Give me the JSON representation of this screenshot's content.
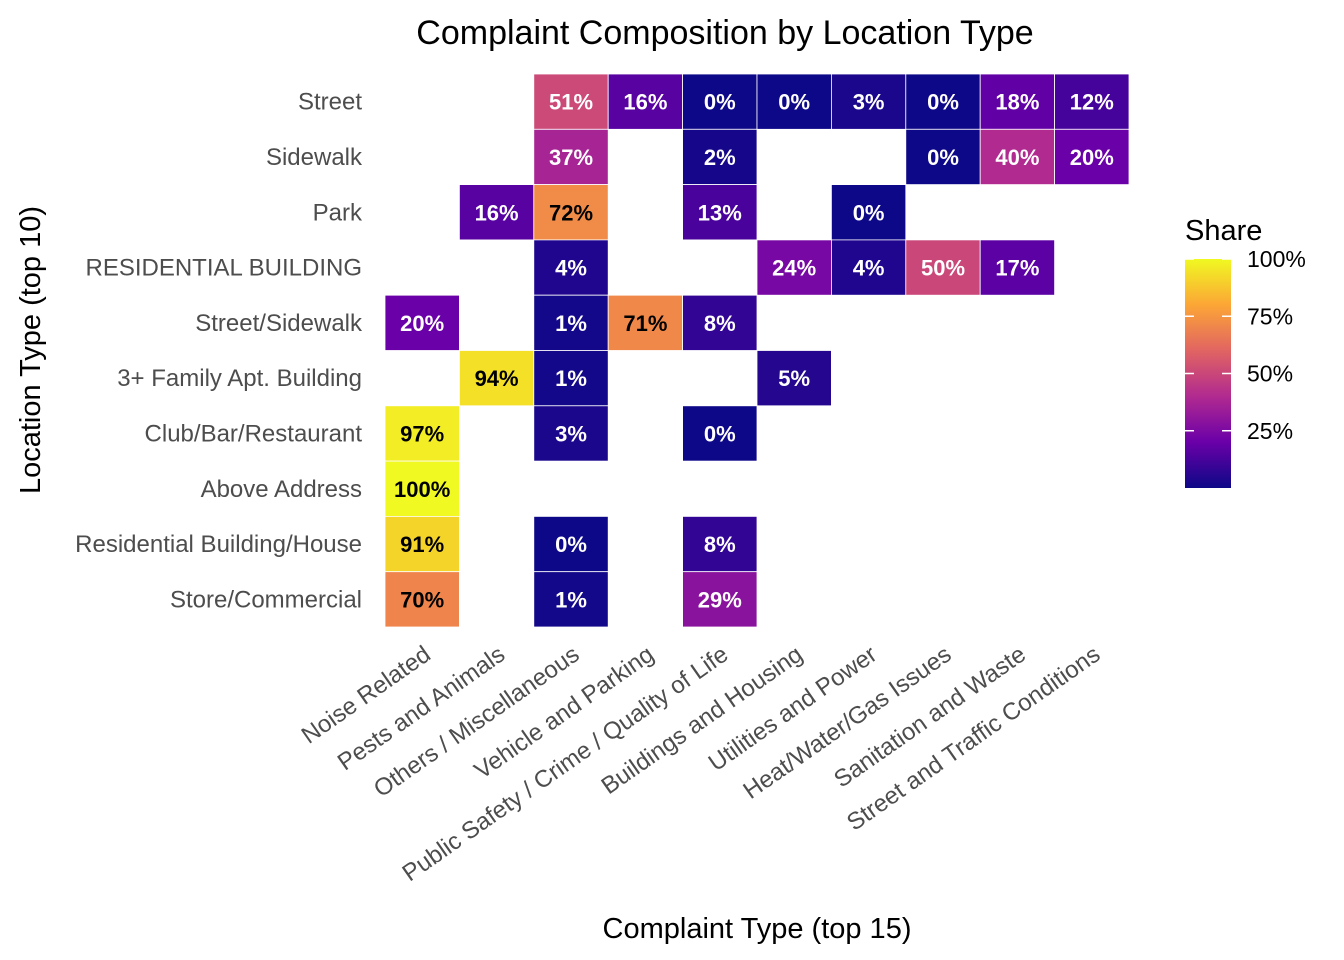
{
  "chart_data": {
    "type": "heatmap",
    "title": "Complaint Composition by Location Type",
    "xlabel": "Complaint Type (top 15)",
    "ylabel": "Location Type (top 10)",
    "x_categories": [
      "Noise Related",
      "Pests and Animals",
      "Others / Miscellaneous",
      "Vehicle and Parking",
      "Public Safety / Crime / Quality of Life",
      "Buildings and Housing",
      "Utilities and Power",
      "Heat/Water/Gas Issues",
      "Sanitation and Waste",
      "Street and Traffic Conditions"
    ],
    "y_categories": [
      "Street",
      "Sidewalk",
      "Park",
      "RESIDENTIAL BUILDING",
      "Street/Sidewalk",
      "3+ Family Apt. Building",
      "Club/Bar/Restaurant",
      "Above Address",
      "Residential Building/House",
      "Store/Commercial"
    ],
    "cells": [
      {
        "y": "Street",
        "x": "Others / Miscellaneous",
        "value": 51,
        "label": "51%"
      },
      {
        "y": "Street",
        "x": "Vehicle and Parking",
        "value": 16,
        "label": "16%"
      },
      {
        "y": "Street",
        "x": "Public Safety / Crime / Quality of Life",
        "value": 0,
        "label": "0%"
      },
      {
        "y": "Street",
        "x": "Buildings and Housing",
        "value": 0,
        "label": "0%"
      },
      {
        "y": "Street",
        "x": "Utilities and Power",
        "value": 3,
        "label": "3%"
      },
      {
        "y": "Street",
        "x": "Heat/Water/Gas Issues",
        "value": 0,
        "label": "0%"
      },
      {
        "y": "Street",
        "x": "Sanitation and Waste",
        "value": 18,
        "label": "18%"
      },
      {
        "y": "Street",
        "x": "Street and Traffic Conditions",
        "value": 12,
        "label": "12%"
      },
      {
        "y": "Sidewalk",
        "x": "Others / Miscellaneous",
        "value": 37,
        "label": "37%"
      },
      {
        "y": "Sidewalk",
        "x": "Public Safety / Crime / Quality of Life",
        "value": 2,
        "label": "2%"
      },
      {
        "y": "Sidewalk",
        "x": "Heat/Water/Gas Issues",
        "value": 0,
        "label": "0%"
      },
      {
        "y": "Sidewalk",
        "x": "Sanitation and Waste",
        "value": 40,
        "label": "40%"
      },
      {
        "y": "Sidewalk",
        "x": "Street and Traffic Conditions",
        "value": 20,
        "label": "20%"
      },
      {
        "y": "Park",
        "x": "Pests and Animals",
        "value": 16,
        "label": "16%"
      },
      {
        "y": "Park",
        "x": "Others / Miscellaneous",
        "value": 72,
        "label": "72%"
      },
      {
        "y": "Park",
        "x": "Public Safety / Crime / Quality of Life",
        "value": 13,
        "label": "13%"
      },
      {
        "y": "Park",
        "x": "Utilities and Power",
        "value": 0,
        "label": "0%"
      },
      {
        "y": "RESIDENTIAL BUILDING",
        "x": "Others / Miscellaneous",
        "value": 4,
        "label": "4%"
      },
      {
        "y": "RESIDENTIAL BUILDING",
        "x": "Buildings and Housing",
        "value": 24,
        "label": "24%"
      },
      {
        "y": "RESIDENTIAL BUILDING",
        "x": "Utilities and Power",
        "value": 4,
        "label": "4%"
      },
      {
        "y": "RESIDENTIAL BUILDING",
        "x": "Heat/Water/Gas Issues",
        "value": 50,
        "label": "50%"
      },
      {
        "y": "RESIDENTIAL BUILDING",
        "x": "Sanitation and Waste",
        "value": 17,
        "label": "17%"
      },
      {
        "y": "Street/Sidewalk",
        "x": "Noise Related",
        "value": 20,
        "label": "20%"
      },
      {
        "y": "Street/Sidewalk",
        "x": "Others / Miscellaneous",
        "value": 1,
        "label": "1%"
      },
      {
        "y": "Street/Sidewalk",
        "x": "Vehicle and Parking",
        "value": 71,
        "label": "71%"
      },
      {
        "y": "Street/Sidewalk",
        "x": "Public Safety / Crime / Quality of Life",
        "value": 8,
        "label": "8%"
      },
      {
        "y": "3+ Family Apt. Building",
        "x": "Pests and Animals",
        "value": 94,
        "label": "94%"
      },
      {
        "y": "3+ Family Apt. Building",
        "x": "Others / Miscellaneous",
        "value": 1,
        "label": "1%"
      },
      {
        "y": "3+ Family Apt. Building",
        "x": "Buildings and Housing",
        "value": 5,
        "label": "5%"
      },
      {
        "y": "Club/Bar/Restaurant",
        "x": "Noise Related",
        "value": 97,
        "label": "97%"
      },
      {
        "y": "Club/Bar/Restaurant",
        "x": "Others / Miscellaneous",
        "value": 3,
        "label": "3%"
      },
      {
        "y": "Club/Bar/Restaurant",
        "x": "Public Safety / Crime / Quality of Life",
        "value": 0,
        "label": "0%"
      },
      {
        "y": "Above Address",
        "x": "Noise Related",
        "value": 100,
        "label": "100%"
      },
      {
        "y": "Residential Building/House",
        "x": "Noise Related",
        "value": 91,
        "label": "91%"
      },
      {
        "y": "Residential Building/House",
        "x": "Others / Miscellaneous",
        "value": 0,
        "label": "0%"
      },
      {
        "y": "Residential Building/House",
        "x": "Public Safety / Crime / Quality of Life",
        "value": 8,
        "label": "8%"
      },
      {
        "y": "Store/Commercial",
        "x": "Noise Related",
        "value": 70,
        "label": "70%"
      },
      {
        "y": "Store/Commercial",
        "x": "Others / Miscellaneous",
        "value": 1,
        "label": "1%"
      },
      {
        "y": "Store/Commercial",
        "x": "Public Safety / Crime / Quality of Life",
        "value": 29,
        "label": "29%"
      }
    ],
    "legend": {
      "title": "Share",
      "position": "right",
      "ticks": [
        {
          "value": 100,
          "label": "100%"
        },
        {
          "value": 75,
          "label": "75%"
        },
        {
          "value": 50,
          "label": "50%"
        },
        {
          "value": 25,
          "label": "25%"
        }
      ],
      "range": [
        0,
        100
      ],
      "palette": "plasma",
      "colors": [
        "#0d0887",
        "#6a00a8",
        "#b12a90",
        "#e16462",
        "#fca636",
        "#f0f921"
      ]
    }
  }
}
